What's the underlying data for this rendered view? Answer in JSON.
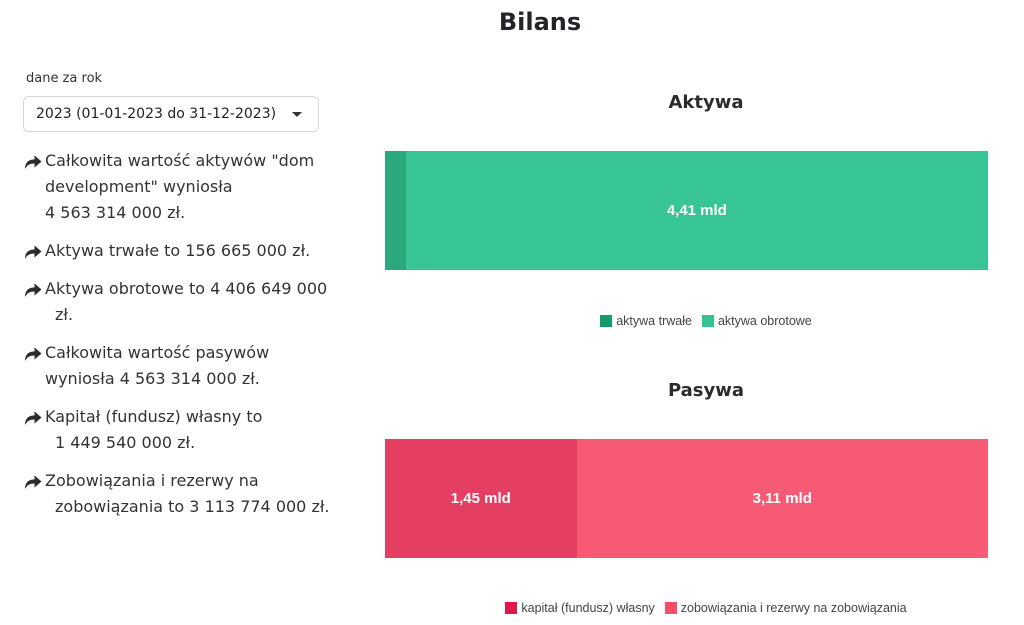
{
  "header": {
    "title": "Bilans"
  },
  "year_selector": {
    "label": "dane za rok",
    "value": "2023 (01-01-2023 do 31-12-2023)"
  },
  "facts": [
    {
      "lines": [
        "Całkowita wartość aktywów \"dom",
        "development\" wyniosła",
        "4 563 314 000 zł."
      ]
    },
    {
      "lines": [
        "Aktywa trwałe to 156 665 000 zł."
      ]
    },
    {
      "lines": [
        "Aktywa obrotowe to 4 406 649 000",
        "zł."
      ]
    },
    {
      "lines": [
        "Całkowita wartość pasywów",
        "wyniosła 4 563 314 000 zł."
      ]
    },
    {
      "lines": [
        "Kapitał (fundusz) własny to",
        "1 449 540 000 zł."
      ]
    },
    {
      "lines": [
        "Zobowiązania i rezerwy na",
        "zobowiązania to 3 113 774 000 zł."
      ]
    }
  ],
  "chart_data": [
    {
      "type": "bar",
      "stacked": true,
      "orientation": "horizontal",
      "title": "Aktywa",
      "series": [
        {
          "name": "aktywa trwałe",
          "value": 156665000,
          "label": "",
          "color": "#29a97c",
          "legend_color": "#0f9d6a"
        },
        {
          "name": "aktywa obrotowe",
          "value": 4406649000,
          "label": "4,41 mld",
          "color": "#38c595",
          "legend_color": "#2fc490"
        }
      ],
      "legend": "bottom"
    },
    {
      "type": "bar",
      "stacked": true,
      "orientation": "horizontal",
      "title": "Pasywa",
      "series": [
        {
          "name": "kapitał (fundusz) własny",
          "value": 1449540000,
          "label": "1,45 mld",
          "color": "#e43e62",
          "legend_color": "#e0184a"
        },
        {
          "name": "zobowiązania i rezerwy na zobowiązania",
          "value": 3113774000,
          "label": "3,11 mld",
          "color": "#f65a74",
          "legend_color": "#f74d6c"
        }
      ],
      "legend": "bottom"
    }
  ]
}
